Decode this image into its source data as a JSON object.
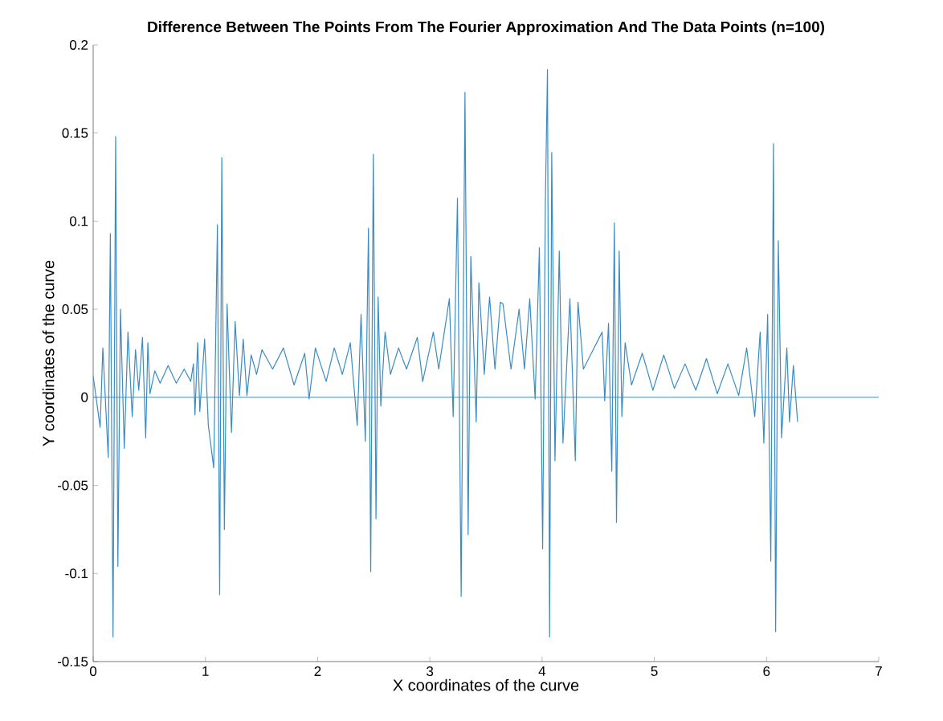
{
  "chart_data": {
    "type": "line",
    "title": "Difference Between The Points From The Fourier Approximation And The Data Points (n=100)",
    "xlabel": "X coordinates of the curve",
    "ylabel": "Y coordinates of the curve",
    "xlim": [
      0,
      7
    ],
    "xticks": [
      0,
      1,
      2,
      3,
      4,
      5,
      6,
      7
    ],
    "ylim": [
      -0.15,
      0.2
    ],
    "yticks": [
      -0.15,
      -0.1,
      -0.05,
      0,
      0.05,
      0.1,
      0.15,
      0.2
    ],
    "grid": false,
    "marker": "none",
    "line_style": "solid",
    "ref_lines": [
      {
        "axis": "y",
        "value": 0,
        "color": "#3a8cc4"
      }
    ],
    "series": [
      {
        "color": "#3a8cc4",
        "x": [
          0,
          0.062,
          0.086,
          0.134,
          0.153,
          0.177,
          0.2,
          0.22,
          0.243,
          0.277,
          0.31,
          0.348,
          0.377,
          0.406,
          0.439,
          0.468,
          0.487,
          0.506,
          0.549,
          0.597,
          0.668,
          0.74,
          0.811,
          0.869,
          0.893,
          0.907,
          0.931,
          0.95,
          0.993,
          1.026,
          1.074,
          1.107,
          1.127,
          1.146,
          1.169,
          1.193,
          1.232,
          1.265,
          1.303,
          1.337,
          1.37,
          1.408,
          1.456,
          1.504,
          1.599,
          1.695,
          1.79,
          1.885,
          1.924,
          1.98,
          2.076,
          2.148,
          2.22,
          2.291,
          2.353,
          2.387,
          2.425,
          2.453,
          2.473,
          2.496,
          2.52,
          2.539,
          2.563,
          2.601,
          2.649,
          2.721,
          2.792,
          2.888,
          2.936,
          3.031,
          3.079,
          3.174,
          3.208,
          3.246,
          3.279,
          3.313,
          3.341,
          3.365,
          3.413,
          3.437,
          3.485,
          3.532,
          3.58,
          3.628,
          3.652,
          3.723,
          3.795,
          3.843,
          3.89,
          3.938,
          3.976,
          4.005,
          4.029,
          4.048,
          4.067,
          4.086,
          4.115,
          4.153,
          4.186,
          4.248,
          4.296,
          4.32,
          4.368,
          4.439,
          4.535,
          4.558,
          4.592,
          4.621,
          4.644,
          4.663,
          4.687,
          4.711,
          4.74,
          4.797,
          4.893,
          4.988,
          5.084,
          5.179,
          5.274,
          5.37,
          5.465,
          5.561,
          5.656,
          5.752,
          5.823,
          5.895,
          5.943,
          5.976,
          6.01,
          6.038,
          6.062,
          6.081,
          6.105,
          6.134,
          6.181,
          6.205,
          6.239,
          6.277
        ],
        "values": [
          0.012,
          -0.017,
          0.028,
          -0.034,
          0.093,
          -0.136,
          0.148,
          -0.096,
          0.05,
          -0.029,
          0.037,
          -0.011,
          0.027,
          0.004,
          0.034,
          -0.023,
          0.031,
          0.002,
          0.015,
          0.008,
          0.018,
          0.008,
          0.016,
          0.009,
          0.019,
          -0.01,
          0.031,
          -0.008,
          0.033,
          -0.016,
          -0.04,
          0.098,
          -0.112,
          0.136,
          -0.075,
          0.053,
          -0.02,
          0.043,
          0.001,
          0.033,
          0.001,
          0.024,
          0.013,
          0.027,
          0.016,
          0.028,
          0.007,
          0.025,
          -0.001,
          0.028,
          0.009,
          0.028,
          0.013,
          0.031,
          -0.016,
          0.047,
          -0.025,
          0.096,
          -0.099,
          0.138,
          -0.069,
          0.057,
          -0.005,
          0.037,
          0.013,
          0.028,
          0.016,
          0.034,
          0.009,
          0.037,
          0.016,
          0.056,
          -0.011,
          0.113,
          -0.113,
          0.173,
          -0.078,
          0.08,
          -0.014,
          0.065,
          0.013,
          0.057,
          0.016,
          0.054,
          0.053,
          0.016,
          0.05,
          0.016,
          0.056,
          -0.001,
          0.085,
          -0.086,
          0.11,
          0.186,
          -0.136,
          0.139,
          -0.036,
          0.083,
          -0.026,
          0.056,
          -0.036,
          0.054,
          0.016,
          0.025,
          0.037,
          -0.002,
          0.042,
          -0.042,
          0.099,
          -0.071,
          0.083,
          -0.011,
          0.031,
          0.007,
          0.025,
          0.004,
          0.024,
          0.005,
          0.019,
          0.004,
          0.022,
          0.002,
          0.019,
          0.001,
          0.028,
          -0.011,
          0.037,
          -0.026,
          0.047,
          -0.093,
          0.144,
          -0.133,
          0.089,
          -0.023,
          0.028,
          -0.014,
          0.018,
          -0.014
        ]
      }
    ]
  }
}
